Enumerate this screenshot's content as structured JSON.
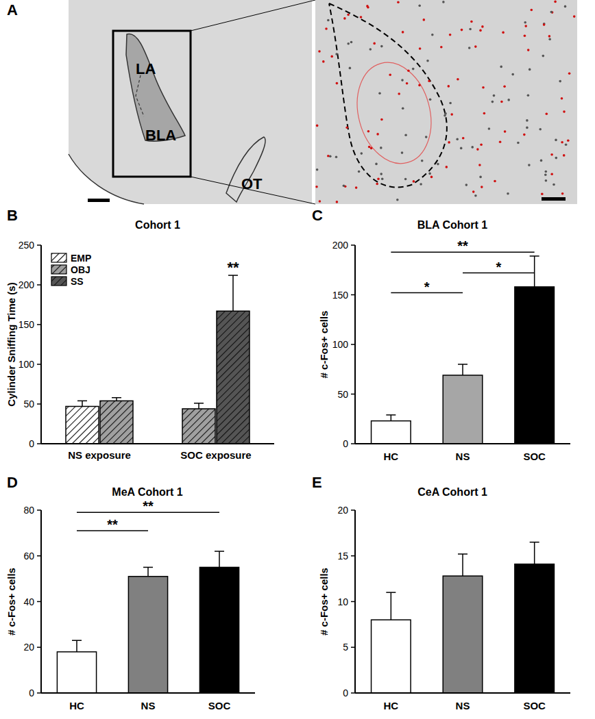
{
  "diagram": {
    "panel": "A",
    "labels": [
      "LA",
      "BLA",
      "OT"
    ]
  },
  "chart_data": [
    {
      "type": "bar",
      "panel": "B",
      "title": "Cohort 1",
      "y_label": "Cylinder Sniffing Time (s)",
      "categories": [
        "NS exposure",
        "SOC exposure"
      ],
      "series": [
        {
          "name": "EMP",
          "color": "#ffffff",
          "values": [
            47,
            null
          ],
          "errors": [
            7,
            null
          ]
        },
        {
          "name": "OBJ",
          "color": "#a0a0a0",
          "values": [
            54,
            44
          ],
          "errors": [
            4,
            7
          ]
        },
        {
          "name": "SS",
          "color": "#555555",
          "values": [
            null,
            167
          ],
          "errors": [
            null,
            45
          ]
        }
      ],
      "ylim": [
        0,
        250
      ],
      "yticks": [
        0,
        50,
        100,
        150,
        200,
        250
      ],
      "legend": "top-left",
      "annotations": [
        {
          "text": "**",
          "series": 2,
          "category": 1
        }
      ]
    },
    {
      "type": "bar",
      "panel": "C",
      "title": "BLA Cohort 1",
      "y_label": "# c-Fos+ cells",
      "categories": [
        "HC",
        "NS",
        "SOC"
      ],
      "values": [
        23,
        69,
        158
      ],
      "errors": [
        6,
        11,
        31
      ],
      "colors": [
        "#ffffff",
        "#a6a6a6",
        "#000000"
      ],
      "ylim": [
        0,
        200
      ],
      "yticks": [
        0,
        50,
        100,
        150,
        200
      ],
      "annotations": [
        {
          "text": "**",
          "from": 0,
          "to": 2,
          "y": 193
        },
        {
          "text": "*",
          "from": 1,
          "to": 2,
          "y": 172
        },
        {
          "text": "*",
          "from": 0,
          "to": 1,
          "y": 152
        }
      ]
    },
    {
      "type": "bar",
      "panel": "D",
      "title": "MeA Cohort 1",
      "y_label": "# c-Fos+ cells",
      "categories": [
        "HC",
        "NS",
        "SOC"
      ],
      "values": [
        18,
        51,
        55
      ],
      "errors": [
        5,
        4,
        7
      ],
      "colors": [
        "#ffffff",
        "#808080",
        "#000000"
      ],
      "ylim": [
        0,
        80
      ],
      "yticks": [
        0,
        20,
        40,
        60,
        80
      ],
      "annotations": [
        {
          "text": "**",
          "from": 0,
          "to": 1,
          "y": 71
        },
        {
          "text": "**",
          "from": 0,
          "to": 2,
          "y": 79
        }
      ]
    },
    {
      "type": "bar",
      "panel": "E",
      "title": "CeA Cohort 1",
      "y_label": "# c-Fos+ cells",
      "categories": [
        "HC",
        "NS",
        "SOC"
      ],
      "values": [
        8,
        12.8,
        14.1
      ],
      "errors": [
        3,
        2.4,
        2.4
      ],
      "colors": [
        "#ffffff",
        "#808080",
        "#000000"
      ],
      "ylim": [
        0,
        20
      ],
      "yticks": [
        0,
        5,
        10,
        15,
        20
      ]
    }
  ]
}
